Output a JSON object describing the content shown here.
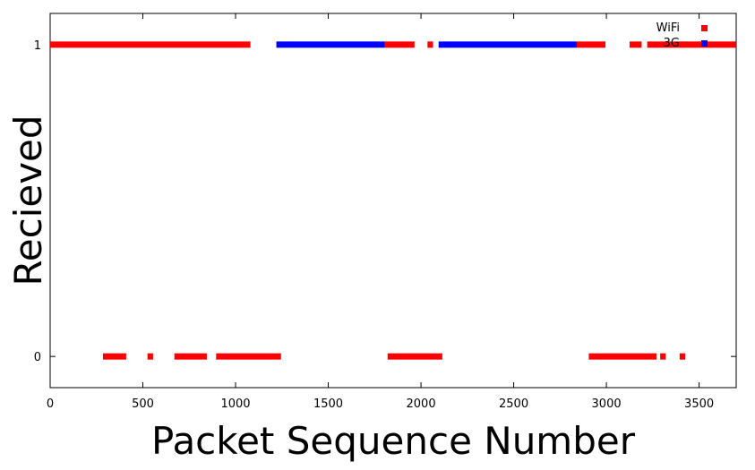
{
  "chart_data": {
    "type": "scatter",
    "title": "",
    "xlabel": "Packet Sequence Number",
    "ylabel": "Recieved",
    "xlim": [
      0,
      3700
    ],
    "ylim": [
      -0.1,
      1.1
    ],
    "x_ticks": [
      0,
      500,
      1000,
      1500,
      2000,
      2500,
      3000,
      3500
    ],
    "y_ticks": [
      0,
      1
    ],
    "grid": false,
    "legend_position": "top-right",
    "series": [
      {
        "name": "WiFi",
        "color": "#ff0000",
        "received_ranges": [
          [
            0,
            1080
          ],
          [
            1805,
            1965
          ],
          [
            2035,
            2065
          ],
          [
            2840,
            2995
          ],
          [
            3125,
            3190
          ],
          [
            3220,
            3700
          ]
        ],
        "lost_ranges": [
          [
            285,
            410
          ],
          [
            525,
            555
          ],
          [
            670,
            845
          ],
          [
            895,
            1245
          ],
          [
            1820,
            2115
          ],
          [
            2905,
            3270
          ],
          [
            3290,
            3320
          ],
          [
            3395,
            3425
          ]
        ]
      },
      {
        "name": "3G",
        "color": "#0000ff",
        "received_ranges": [
          [
            1220,
            1805
          ],
          [
            2095,
            2840
          ]
        ],
        "lost_ranges": []
      }
    ]
  }
}
